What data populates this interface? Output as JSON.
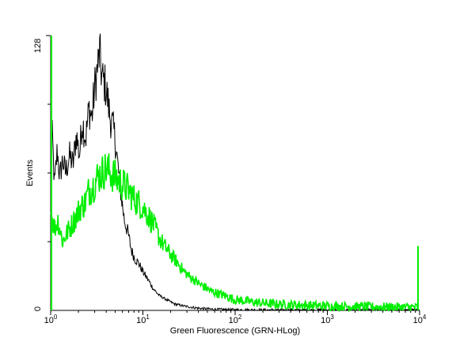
{
  "chart_data": {
    "type": "line",
    "title": "",
    "xlabel": "Green Fluorescence (GRN-HLog)",
    "ylabel": "Events",
    "x_scale": "log",
    "xlim": [
      1,
      10000
    ],
    "ylim": [
      0,
      128
    ],
    "x_ticks": [
      {
        "value": 1,
        "base": "10",
        "exp": "0"
      },
      {
        "value": 10,
        "base": "10",
        "exp": "1"
      },
      {
        "value": 100,
        "base": "10",
        "exp": "2"
      },
      {
        "value": 1000,
        "base": "10",
        "exp": "3"
      },
      {
        "value": 10000,
        "base": "10",
        "exp": "4"
      }
    ],
    "y_tick_labels": [
      {
        "value": 0,
        "label": "0"
      },
      {
        "value": 128,
        "label": "128"
      }
    ],
    "grid": false,
    "legend": "none",
    "series": [
      {
        "color": "#000000",
        "points": [
          [
            1.0,
            92
          ],
          [
            1.05,
            78
          ],
          [
            1.1,
            58
          ],
          [
            1.18,
            75
          ],
          [
            1.25,
            62
          ],
          [
            1.35,
            70
          ],
          [
            1.45,
            64
          ],
          [
            1.6,
            72
          ],
          [
            1.75,
            68
          ],
          [
            1.9,
            82
          ],
          [
            2.05,
            72
          ],
          [
            2.2,
            88
          ],
          [
            2.4,
            80
          ],
          [
            2.6,
            94
          ],
          [
            2.8,
            90
          ],
          [
            3.0,
            104
          ],
          [
            3.2,
            112
          ],
          [
            3.4,
            120
          ],
          [
            3.6,
            108
          ],
          [
            3.85,
            106
          ],
          [
            4.1,
            100
          ],
          [
            4.4,
            90
          ],
          [
            4.7,
            86
          ],
          [
            5.0,
            80
          ],
          [
            5.4,
            66
          ],
          [
            5.8,
            54
          ],
          [
            6.3,
            42
          ],
          [
            6.9,
            36
          ],
          [
            7.5,
            28
          ],
          [
            8.2,
            24
          ],
          [
            9.0,
            22
          ],
          [
            10.0,
            18
          ],
          [
            11.5,
            14
          ],
          [
            13.0,
            10
          ],
          [
            15.0,
            7
          ],
          [
            18.0,
            5
          ],
          [
            22.0,
            3
          ],
          [
            28.0,
            2
          ],
          [
            40.0,
            1
          ],
          [
            60.0,
            0.5
          ],
          [
            100.0,
            0.3
          ],
          [
            300.0,
            0.2
          ],
          [
            1000.0,
            0.2
          ],
          [
            10000.0,
            0.2
          ]
        ]
      },
      {
        "color": "#00ee00",
        "points": [
          [
            1.0,
            46
          ],
          [
            1.1,
            38
          ],
          [
            1.2,
            42
          ],
          [
            1.35,
            32
          ],
          [
            1.5,
            36
          ],
          [
            1.7,
            40
          ],
          [
            1.9,
            44
          ],
          [
            2.1,
            48
          ],
          [
            2.35,
            50
          ],
          [
            2.6,
            56
          ],
          [
            2.9,
            58
          ],
          [
            3.2,
            62
          ],
          [
            3.6,
            64
          ],
          [
            4.0,
            66
          ],
          [
            4.5,
            64
          ],
          [
            5.0,
            62
          ],
          [
            5.6,
            60
          ],
          [
            6.3,
            58
          ],
          [
            7.0,
            56
          ],
          [
            8.0,
            52
          ],
          [
            9.0,
            50
          ],
          [
            10.0,
            48
          ],
          [
            11.5,
            44
          ],
          [
            13.0,
            40
          ],
          [
            15.0,
            34
          ],
          [
            17.0,
            30
          ],
          [
            20.0,
            26
          ],
          [
            24.0,
            22
          ],
          [
            28.0,
            18
          ],
          [
            34.0,
            15
          ],
          [
            42.0,
            12
          ],
          [
            55.0,
            9
          ],
          [
            75.0,
            7
          ],
          [
            100.0,
            5
          ],
          [
            150.0,
            4
          ],
          [
            250.0,
            3
          ],
          [
            500.0,
            2.5
          ],
          [
            1000.0,
            2
          ],
          [
            2000.0,
            1.8
          ],
          [
            5000.0,
            1.5
          ],
          [
            8000.0,
            1.5
          ],
          [
            9500.0,
            1.5
          ]
        ]
      }
    ],
    "annotations": {
      "green_end_spike": {
        "x": 10000,
        "y": 30
      }
    }
  }
}
